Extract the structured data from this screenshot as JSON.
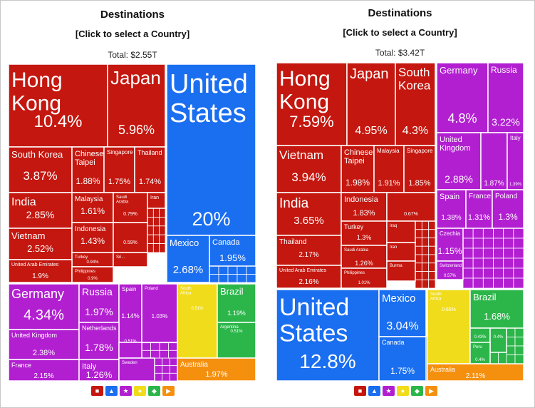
{
  "colors": {
    "asia": "#c4170f",
    "america": "#1a6ef0",
    "europe": "#b21fd1",
    "africa": "#f1dc1b",
    "south_america": "#2cb64a",
    "oceania": "#f5900f",
    "border": "#ffffff"
  },
  "chart_data": [
    {
      "type": "treemap",
      "title": "Destinations",
      "subtitle": "[Click to select a Country]",
      "total": "Total: $2.55T",
      "tiles": [
        {
          "label": "Hong Kong",
          "value": "10.4%",
          "region": "asia"
        },
        {
          "label": "Japan",
          "value": "5.96%",
          "region": "asia"
        },
        {
          "label": "South Korea",
          "value": "3.87%",
          "region": "asia"
        },
        {
          "label": "Chinese Taipei",
          "value": "1.88%",
          "region": "asia"
        },
        {
          "label": "Singapore",
          "value": "1.75%",
          "region": "asia"
        },
        {
          "label": "Thailand",
          "value": "1.74%",
          "region": "asia"
        },
        {
          "label": "India",
          "value": "2.85%",
          "region": "asia"
        },
        {
          "label": "Malaysia",
          "value": "1.61%",
          "region": "asia"
        },
        {
          "label": "Saudi Arabia",
          "value": "0.79%",
          "region": "asia"
        },
        {
          "label": "Iran",
          "value": "",
          "region": "asia"
        },
        {
          "label": "Vietnam",
          "value": "2.52%",
          "region": "asia"
        },
        {
          "label": "Indonesia",
          "value": "1.43%",
          "region": "asia"
        },
        {
          "label": "",
          "value": "0.59%",
          "region": "asia"
        },
        {
          "label": "Turkey",
          "value": "0.94%",
          "region": "asia"
        },
        {
          "label": "Sri...",
          "value": "",
          "region": "asia"
        },
        {
          "label": "United Arab Emirates",
          "value": "1.9%",
          "region": "asia"
        },
        {
          "label": "Philippines",
          "value": "0.9%",
          "region": "asia"
        },
        {
          "label": "United States",
          "value": "20%",
          "region": "america"
        },
        {
          "label": "Mexico",
          "value": "2.68%",
          "region": "america"
        },
        {
          "label": "Canada",
          "value": "1.95%",
          "region": "america"
        },
        {
          "label": "Germany",
          "value": "4.34%",
          "region": "europe"
        },
        {
          "label": "Russia",
          "value": "1.97%",
          "region": "europe"
        },
        {
          "label": "Spain",
          "value": "1.14%",
          "region": "europe"
        },
        {
          "label": "Poland",
          "value": "1.03%",
          "region": "europe"
        },
        {
          "label": "United Kingdom",
          "value": "2.38%",
          "region": "europe"
        },
        {
          "label": "Netherlands",
          "value": "1.78%",
          "region": "europe"
        },
        {
          "label": "",
          "value": "0.51%",
          "region": "europe"
        },
        {
          "label": "France",
          "value": "2.15%",
          "region": "europe"
        },
        {
          "label": "Italy",
          "value": "1.26%",
          "region": "europe"
        },
        {
          "label": "Sweden",
          "value": "",
          "region": "europe"
        },
        {
          "label": "South Africa",
          "value": "0.51%",
          "region": "africa"
        },
        {
          "label": "Brazil",
          "value": "1.19%",
          "region": "south_america"
        },
        {
          "label": "Argentina",
          "value": "0.51%",
          "region": "south_america"
        },
        {
          "label": "Australia",
          "value": "1.97%",
          "region": "oceania"
        }
      ]
    },
    {
      "type": "treemap",
      "title": "Destinations",
      "subtitle": "[Click to select a Country]",
      "total": "Total: $3.42T",
      "tiles": [
        {
          "label": "Hong Kong",
          "value": "7.59%",
          "region": "asia"
        },
        {
          "label": "Japan",
          "value": "4.95%",
          "region": "asia"
        },
        {
          "label": "South Korea",
          "value": "4.3%",
          "region": "asia"
        },
        {
          "label": "Vietnam",
          "value": "3.94%",
          "region": "asia"
        },
        {
          "label": "Chinese Taipei",
          "value": "1.98%",
          "region": "asia"
        },
        {
          "label": "Malaysia",
          "value": "1.91%",
          "region": "asia"
        },
        {
          "label": "Singapore",
          "value": "1.85%",
          "region": "asia"
        },
        {
          "label": "India",
          "value": "3.65%",
          "region": "asia"
        },
        {
          "label": "Indonesia",
          "value": "1.83%",
          "region": "asia"
        },
        {
          "label": "",
          "value": "0.67%",
          "region": "asia"
        },
        {
          "label": "Turkey",
          "value": "1.3%",
          "region": "asia"
        },
        {
          "label": "Iraq",
          "value": "",
          "region": "asia"
        },
        {
          "label": "Thailand",
          "value": "2.17%",
          "region": "asia"
        },
        {
          "label": "Saudi Arabia",
          "value": "1.26%",
          "region": "asia"
        },
        {
          "label": "Iran",
          "value": "",
          "region": "asia"
        },
        {
          "label": "United Arab Emirates",
          "value": "2.16%",
          "region": "asia"
        },
        {
          "label": "Philippines",
          "value": "1.01%",
          "region": "asia"
        },
        {
          "label": "Burma",
          "value": "",
          "region": "asia"
        },
        {
          "label": "Germany",
          "value": "4.8%",
          "region": "europe"
        },
        {
          "label": "Russia",
          "value": "3.22%",
          "region": "europe"
        },
        {
          "label": "United Kingdom",
          "value": "2.88%",
          "region": "europe"
        },
        {
          "label": "",
          "value": "1.87%",
          "region": "europe"
        },
        {
          "label": "Italy",
          "value": "1.39%",
          "region": "europe"
        },
        {
          "label": "Spain",
          "value": "1.38%",
          "region": "europe"
        },
        {
          "label": "France",
          "value": "1.31%",
          "region": "europe"
        },
        {
          "label": "Poland",
          "value": "1.3%",
          "region": "europe"
        },
        {
          "label": "Czechia",
          "value": "1.15%",
          "region": "europe"
        },
        {
          "label": "Switzerland",
          "value": "0.57%",
          "region": "europe"
        },
        {
          "label": "United States",
          "value": "12.8%",
          "region": "america"
        },
        {
          "label": "Mexico",
          "value": "3.04%",
          "region": "america"
        },
        {
          "label": "Canada",
          "value": "1.75%",
          "region": "america"
        },
        {
          "label": "South Africa",
          "value": "0.65%",
          "region": "africa"
        },
        {
          "label": "Brazil",
          "value": "1.68%",
          "region": "south_america"
        },
        {
          "label": "",
          "value": "0.43%",
          "region": "south_america"
        },
        {
          "label": "",
          "value": "0.4%",
          "region": "south_america"
        },
        {
          "label": "Peru",
          "value": "0.4%",
          "region": "south_america"
        },
        {
          "label": "Australia",
          "value": "2.11%",
          "region": "oceania"
        }
      ]
    }
  ],
  "legend": [
    {
      "icon": "asia-icon",
      "region": "asia"
    },
    {
      "icon": "america-icon",
      "region": "america"
    },
    {
      "icon": "europe-icon",
      "region": "europe"
    },
    {
      "icon": "africa-icon",
      "region": "africa"
    },
    {
      "icon": "south-america-icon",
      "region": "south_america"
    },
    {
      "icon": "oceania-icon",
      "region": "oceania"
    }
  ]
}
